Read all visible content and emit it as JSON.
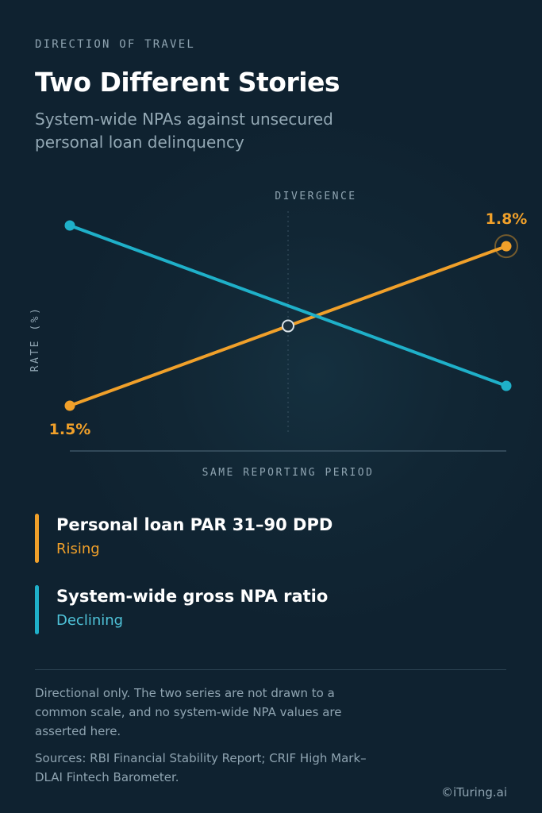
{
  "header": {
    "eyebrow": "DIRECTION OF TRAVEL",
    "title": "Two Different Stories",
    "subtitle": "System-wide NPAs against unsecured personal loan delinquency"
  },
  "chart_data": {
    "type": "line",
    "title": "Two Different Stories",
    "subtitle": "System-wide NPAs against unsecured personal loan delinquency",
    "xlabel": "SAME REPORTING PERIOD",
    "ylabel": "RATE (%)",
    "annotation": "DIVERGENCE",
    "scale_note": "Directional only; series not drawn to a common scale",
    "grid": false,
    "series": [
      {
        "name": "Personal loan PAR 31–90 DPD",
        "trend": "Rising",
        "color": "#f0a02a",
        "start_label": "1.5%",
        "end_label": "1.8%",
        "values": [
          1.5,
          1.8
        ],
        "relative_level": [
          0.0,
          0.885
        ]
      },
      {
        "name": "System-wide gross NPA ratio",
        "trend": "Declining",
        "color": "#1fb0c9",
        "relative_level": [
          1.0,
          0.11
        ]
      }
    ],
    "crossover_relative": 0.5
  },
  "legend": [
    {
      "name": "Personal loan PAR 31–90 DPD",
      "status": "Rising",
      "color": "#f0a02a"
    },
    {
      "name": "System-wide gross NPA ratio",
      "status": "Declining",
      "color": "#1fb0c9"
    }
  ],
  "footer": {
    "note": "Directional only. The two series are not drawn to a common scale, and no system-wide NPA values are asserted here.",
    "sources": "Sources: RBI Financial Stability Report; CRIF High Mark–DLAI Fintech Barometer.",
    "copyright": "©iTuring.ai"
  },
  "colors": {
    "background": "#0f2230",
    "accent_orange": "#f0a02a",
    "accent_teal": "#1fb0c9",
    "muted_text": "#8fa4b1"
  }
}
